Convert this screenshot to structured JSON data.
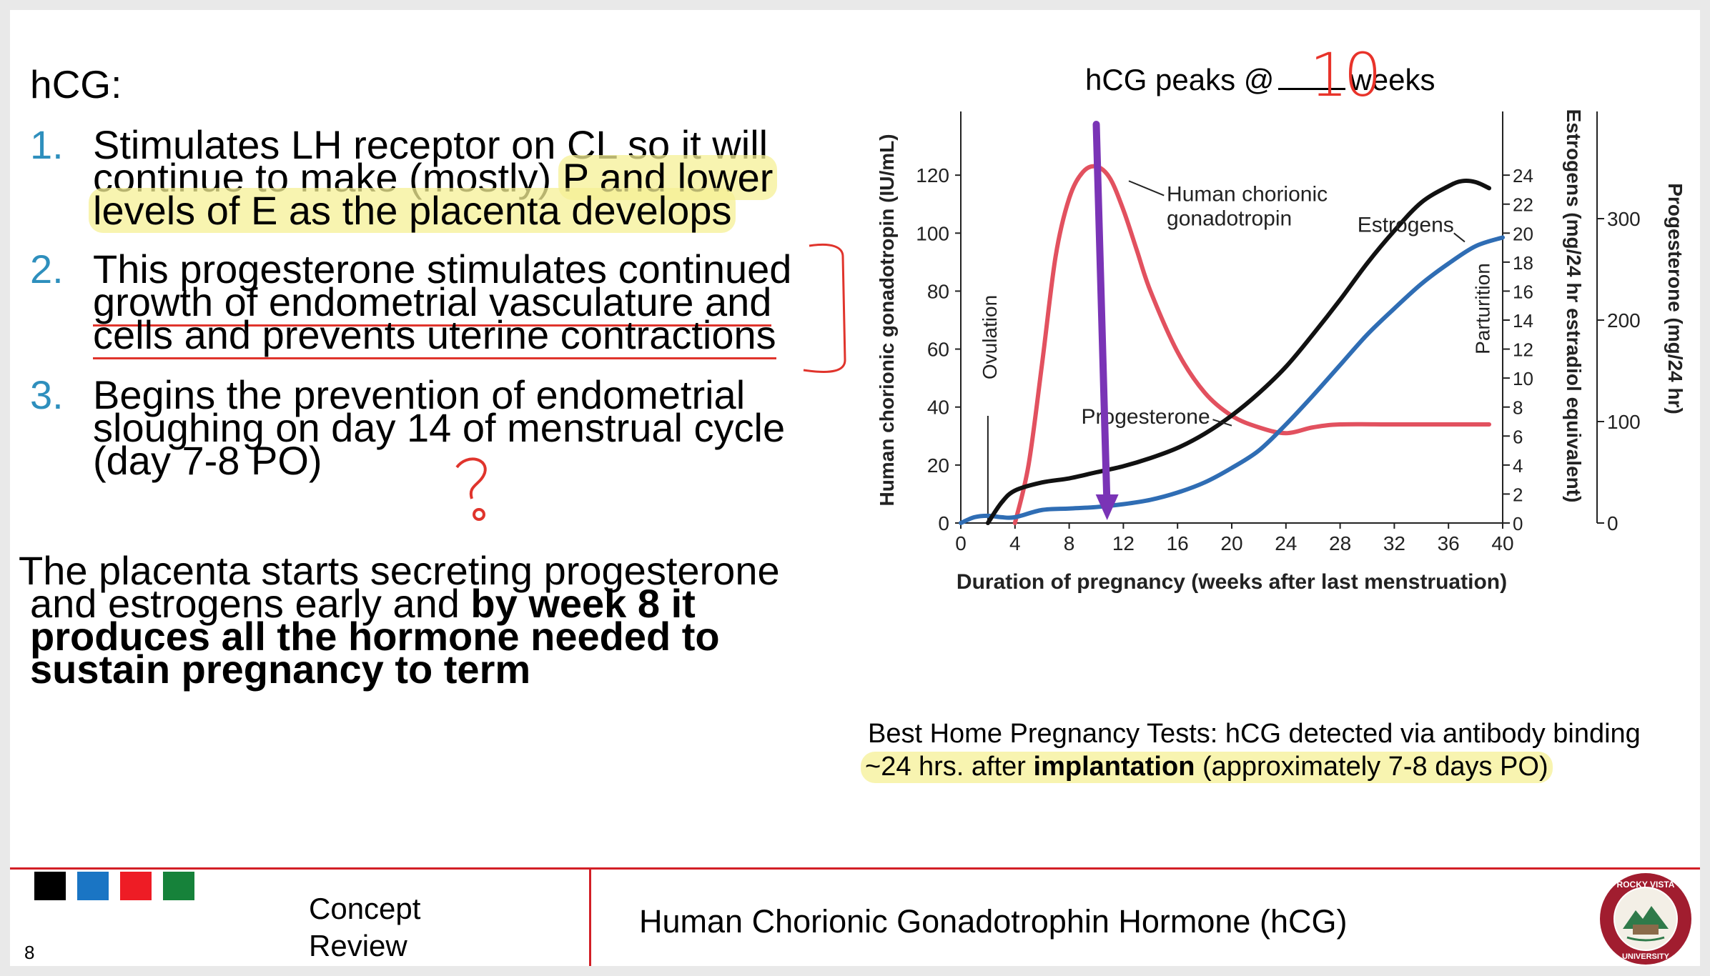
{
  "left": {
    "heading": "hCG:",
    "items": [
      {
        "num": "1.",
        "lines": [
          "Stimulates LH receptor on CL so it will",
          "continue to make (mostly) ",
          "P and lower",
          "levels of E as the placenta develops"
        ]
      },
      {
        "num": "2.",
        "lines": [
          "This progesterone stimulates continued",
          "growth of endometrial vasculature and",
          "cells and prevents uterine contractions"
        ]
      },
      {
        "num": "3.",
        "lines": [
          "Begins the prevention of endometrial",
          "sloughing on day 14 of menstrual cycle",
          "(day 7-8 PO)"
        ]
      }
    ],
    "placenta": {
      "normal1": "The placenta starts secreting progesterone",
      "normal2": "and estrogens early and ",
      "bold2": "by week 8 it",
      "bold3": "produces all the hormone needed to",
      "bold4": "sustain pregnancy to term"
    }
  },
  "annotation": {
    "peaks_before": "hCG peaks @",
    "peaks_value": "10",
    "peaks_after": "weeks",
    "handwritten_mark": "?"
  },
  "home_test": {
    "line1": "Best Home Pregnancy Tests: hCG detected via antibody binding",
    "line2a": "~24 hrs. after ",
    "line2b": "implantation",
    "line2c": " (approximately 7-8 days PO)"
  },
  "chart_data": {
    "type": "line",
    "xlabel": "Duration of pregnancy (weeks after last menstruation)",
    "ylabel_left": "Human chorionic gonadotropin (IU/mL)",
    "ylabel_right1": "Estrogens (mg/24 hr estradiol equivalent)",
    "ylabel_right2": "Progesterone (mg/24 hr)",
    "x_ticks": [
      0,
      4,
      8,
      12,
      16,
      20,
      24,
      28,
      32,
      36,
      40
    ],
    "xlim": [
      0,
      40
    ],
    "y_left_ticks": [
      0,
      20,
      40,
      60,
      80,
      100,
      120
    ],
    "y_left_lim": [
      0,
      140
    ],
    "y_right1_ticks": [
      0,
      2,
      4,
      6,
      8,
      10,
      12,
      14,
      16,
      18,
      20,
      22,
      24
    ],
    "y_right1_lim": [
      0,
      28
    ],
    "y_right2_ticks": [
      0,
      100,
      200,
      300
    ],
    "y_right2_lim": [
      0,
      400
    ],
    "annotations": {
      "ovulation": "Ovulation",
      "parturition": "Parturition"
    },
    "series": [
      {
        "name": "Human chorionic gonadotropin",
        "color": "#e2515f",
        "axis": "left",
        "x": [
          4,
          5,
          6,
          7,
          8,
          9,
          10,
          11,
          12,
          13,
          14,
          16,
          18,
          20,
          22,
          24,
          26,
          28,
          32,
          36,
          39
        ],
        "values": [
          0,
          20,
          55,
          92,
          112,
          121,
          123,
          119,
          108,
          94,
          80,
          59,
          45,
          37,
          33,
          31,
          33,
          34,
          34,
          34,
          34
        ]
      },
      {
        "name": "Estrogens",
        "color": "#2f6db4",
        "axis": "right1",
        "x": [
          0,
          1,
          2,
          3,
          4,
          6,
          8,
          10,
          12,
          14,
          16,
          18,
          20,
          22,
          24,
          26,
          28,
          30,
          32,
          34,
          36,
          38,
          40
        ],
        "values": [
          0,
          0.4,
          0.5,
          0.4,
          0.4,
          0.9,
          1.0,
          1.1,
          1.3,
          1.6,
          2.1,
          2.8,
          3.8,
          5.0,
          6.8,
          8.8,
          10.9,
          13.0,
          14.8,
          16.5,
          17.9,
          19.1,
          19.7
        ]
      },
      {
        "name": "Progesterone",
        "color": "#111111",
        "axis": "right2",
        "x": [
          2,
          3,
          4,
          6,
          8,
          10,
          12,
          14,
          16,
          18,
          20,
          22,
          24,
          26,
          28,
          30,
          32,
          34,
          36,
          37,
          38,
          39
        ],
        "values": [
          0,
          20,
          32,
          40,
          44,
          50,
          56,
          64,
          74,
          88,
          106,
          128,
          154,
          186,
          220,
          256,
          288,
          316,
          332,
          337,
          336,
          330
        ]
      }
    ]
  },
  "footer": {
    "page": "8",
    "section": [
      "Concept",
      "Review"
    ],
    "title": "Human Chorionic Gonadotrophin Hormone (hCG)",
    "colors": [
      "#000000",
      "#1a75c4",
      "#ee1c25",
      "#16823a"
    ]
  }
}
